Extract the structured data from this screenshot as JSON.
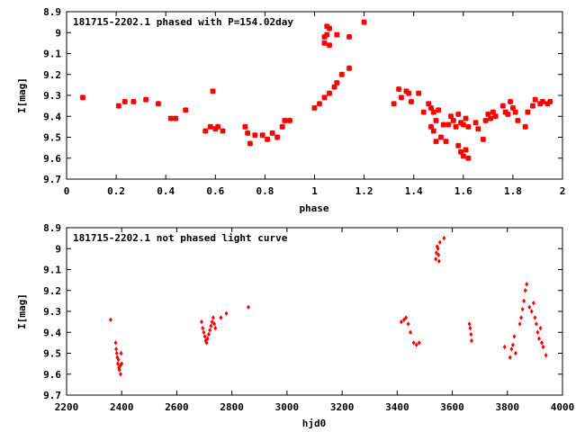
{
  "chart_data": [
    {
      "type": "scatter",
      "title": "181715-2202.1 phased with P=154.02day",
      "xlabel": "phase",
      "ylabel": "I[mag]",
      "xlim": [
        0,
        2
      ],
      "ylim": [
        9.7,
        8.9
      ],
      "y_inverted": true,
      "grid": false,
      "color": "#ff0000",
      "marker": "cross-bold",
      "xticks": [
        0,
        0.2,
        0.4,
        0.6,
        0.8,
        1,
        1.2,
        1.4,
        1.6,
        1.8,
        2
      ],
      "xtick_labels": [
        "0",
        "0.2",
        "0.4",
        "0.6",
        "0.8",
        "1",
        "1.2",
        "1.4",
        "1.6",
        "1.8",
        "2"
      ],
      "yticks": [
        8.9,
        9.0,
        9.1,
        9.2,
        9.3,
        9.4,
        9.5,
        9.6,
        9.7
      ],
      "ytick_labels": [
        "8.9",
        "9",
        "9.1",
        "9.2",
        "9.3",
        "9.4",
        "9.5",
        "9.6",
        "9.7"
      ],
      "series": [
        {
          "points": [
            [
              0.065,
              9.31
            ],
            [
              0.21,
              9.35
            ],
            [
              0.235,
              9.33
            ],
            [
              0.27,
              9.33
            ],
            [
              0.32,
              9.32
            ],
            [
              0.37,
              9.34
            ],
            [
              0.42,
              9.41
            ],
            [
              0.44,
              9.41
            ],
            [
              0.48,
              9.37
            ],
            [
              0.56,
              9.47
            ],
            [
              0.58,
              9.45
            ],
            [
              0.59,
              9.28
            ],
            [
              0.6,
              9.46
            ],
            [
              0.61,
              9.45
            ],
            [
              0.63,
              9.47
            ],
            [
              0.72,
              9.45
            ],
            [
              0.73,
              9.48
            ],
            [
              0.74,
              9.53
            ],
            [
              0.76,
              9.49
            ],
            [
              0.79,
              9.49
            ],
            [
              0.81,
              9.51
            ],
            [
              0.83,
              9.48
            ],
            [
              0.85,
              9.5
            ],
            [
              0.87,
              9.45
            ],
            [
              0.88,
              9.42
            ],
            [
              0.9,
              9.42
            ],
            [
              1.0,
              9.36
            ],
            [
              1.02,
              9.34
            ],
            [
              1.04,
              9.31
            ],
            [
              1.06,
              9.29
            ],
            [
              1.08,
              9.26
            ],
            [
              1.09,
              9.24
            ],
            [
              1.11,
              9.2
            ],
            [
              1.14,
              9.17
            ],
            [
              1.04,
              9.05
            ],
            [
              1.04,
              9.02
            ],
            [
              1.05,
              8.97
            ],
            [
              1.06,
              8.98
            ],
            [
              1.05,
              9.01
            ],
            [
              1.06,
              9.06
            ],
            [
              1.09,
              9.01
            ],
            [
              1.14,
              9.02
            ],
            [
              1.2,
              8.95
            ],
            [
              1.32,
              9.34
            ],
            [
              1.34,
              9.27
            ],
            [
              1.35,
              9.31
            ],
            [
              1.37,
              9.28
            ],
            [
              1.38,
              9.29
            ],
            [
              1.39,
              9.33
            ],
            [
              1.42,
              9.29
            ],
            [
              1.44,
              9.38
            ],
            [
              1.46,
              9.34
            ],
            [
              1.47,
              9.36
            ],
            [
              1.48,
              9.38
            ],
            [
              1.49,
              9.42
            ],
            [
              1.5,
              9.37
            ],
            [
              1.47,
              9.45
            ],
            [
              1.48,
              9.47
            ],
            [
              1.49,
              9.52
            ],
            [
              1.51,
              9.5
            ],
            [
              1.52,
              9.44
            ],
            [
              1.53,
              9.52
            ],
            [
              1.54,
              9.44
            ],
            [
              1.55,
              9.4
            ],
            [
              1.56,
              9.42
            ],
            [
              1.57,
              9.45
            ],
            [
              1.58,
              9.39
            ],
            [
              1.59,
              9.43
            ],
            [
              1.6,
              9.44
            ],
            [
              1.61,
              9.41
            ],
            [
              1.62,
              9.45
            ],
            [
              1.58,
              9.54
            ],
            [
              1.59,
              9.57
            ],
            [
              1.6,
              9.59
            ],
            [
              1.61,
              9.56
            ],
            [
              1.62,
              9.6
            ],
            [
              1.65,
              9.43
            ],
            [
              1.66,
              9.46
            ],
            [
              1.68,
              9.51
            ],
            [
              1.69,
              9.42
            ],
            [
              1.7,
              9.39
            ],
            [
              1.71,
              9.41
            ],
            [
              1.72,
              9.38
            ],
            [
              1.73,
              9.4
            ],
            [
              1.76,
              9.35
            ],
            [
              1.77,
              9.38
            ],
            [
              1.78,
              9.39
            ],
            [
              1.79,
              9.33
            ],
            [
              1.8,
              9.36
            ],
            [
              1.81,
              9.38
            ],
            [
              1.82,
              9.42
            ],
            [
              1.85,
              9.45
            ],
            [
              1.86,
              9.38
            ],
            [
              1.88,
              9.35
            ],
            [
              1.89,
              9.32
            ],
            [
              1.91,
              9.34
            ],
            [
              1.92,
              9.33
            ],
            [
              1.94,
              9.34
            ],
            [
              1.95,
              9.33
            ]
          ]
        }
      ]
    },
    {
      "type": "scatter",
      "title": "181715-2202.1 not phased light curve",
      "xlabel": "hjd0",
      "ylabel": "I[mag]",
      "xlim": [
        2200,
        4000
      ],
      "ylim": [
        9.7,
        8.9
      ],
      "y_inverted": true,
      "grid": false,
      "color": "#ff0000",
      "marker": "diamond-small",
      "xticks": [
        2200,
        2400,
        2600,
        2800,
        3000,
        3200,
        3400,
        3600,
        3800,
        4000
      ],
      "xtick_labels": [
        "2200",
        "2400",
        "2600",
        "2800",
        "3000",
        "3200",
        "3400",
        "3600",
        "3800",
        "4000"
      ],
      "yticks": [
        8.9,
        9.0,
        9.1,
        9.2,
        9.3,
        9.4,
        9.5,
        9.6,
        9.7
      ],
      "ytick_labels": [
        "8.9",
        "9",
        "9.1",
        "9.2",
        "9.3",
        "9.4",
        "9.5",
        "9.6",
        "9.7"
      ],
      "series": [
        {
          "points": [
            [
              2360,
              9.34
            ],
            [
              2378,
              9.45
            ],
            [
              2380,
              9.48
            ],
            [
              2382,
              9.5
            ],
            [
              2384,
              9.52
            ],
            [
              2386,
              9.55
            ],
            [
              2388,
              9.53
            ],
            [
              2390,
              9.57
            ],
            [
              2392,
              9.58
            ],
            [
              2394,
              9.56
            ],
            [
              2396,
              9.6
            ],
            [
              2398,
              9.5
            ],
            [
              2400,
              9.55
            ],
            [
              2690,
              9.35
            ],
            [
              2694,
              9.38
            ],
            [
              2698,
              9.4
            ],
            [
              2702,
              9.42
            ],
            [
              2705,
              9.44
            ],
            [
              2708,
              9.45
            ],
            [
              2712,
              9.43
            ],
            [
              2716,
              9.41
            ],
            [
              2720,
              9.39
            ],
            [
              2724,
              9.37
            ],
            [
              2728,
              9.35
            ],
            [
              2732,
              9.33
            ],
            [
              2736,
              9.36
            ],
            [
              2740,
              9.38
            ],
            [
              2760,
              9.33
            ],
            [
              2780,
              9.31
            ],
            [
              2860,
              9.28
            ],
            [
              3415,
              9.35
            ],
            [
              3425,
              9.34
            ],
            [
              3432,
              9.33
            ],
            [
              3440,
              9.36
            ],
            [
              3448,
              9.4
            ],
            [
              3460,
              9.45
            ],
            [
              3470,
              9.46
            ],
            [
              3480,
              9.45
            ],
            [
              3540,
              9.05
            ],
            [
              3542,
              9.02
            ],
            [
              3545,
              8.99
            ],
            [
              3548,
              9.0
            ],
            [
              3550,
              9.03
            ],
            [
              3552,
              9.06
            ],
            [
              3555,
              8.97
            ],
            [
              3570,
              8.95
            ],
            [
              3662,
              9.36
            ],
            [
              3665,
              9.38
            ],
            [
              3668,
              9.41
            ],
            [
              3670,
              9.44
            ],
            [
              3790,
              9.47
            ],
            [
              3810,
              9.52
            ],
            [
              3815,
              9.48
            ],
            [
              3820,
              9.46
            ],
            [
              3825,
              9.42
            ],
            [
              3830,
              9.5
            ],
            [
              3845,
              9.36
            ],
            [
              3850,
              9.33
            ],
            [
              3855,
              9.29
            ],
            [
              3860,
              9.25
            ],
            [
              3865,
              9.2
            ],
            [
              3870,
              9.17
            ],
            [
              3880,
              9.28
            ],
            [
              3888,
              9.3
            ],
            [
              3895,
              9.26
            ],
            [
              3900,
              9.33
            ],
            [
              3905,
              9.36
            ],
            [
              3910,
              9.4
            ],
            [
              3915,
              9.43
            ],
            [
              3920,
              9.38
            ],
            [
              3925,
              9.45
            ],
            [
              3930,
              9.47
            ],
            [
              3940,
              9.51
            ]
          ]
        }
      ]
    }
  ]
}
